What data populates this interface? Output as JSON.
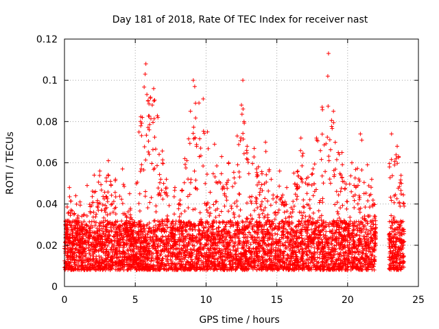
{
  "chart_data": {
    "type": "scatter",
    "title": "Day 181 of 2018, Rate Of TEC Index for receiver nast",
    "xlabel": "GPS time / hours",
    "ylabel": "ROTI / TECUs",
    "xlim": [
      0,
      25
    ],
    "ylim": [
      0,
      0.12
    ],
    "x_ticks": [
      0,
      5,
      10,
      15,
      20,
      25
    ],
    "x_tick_labels": [
      "0",
      "5",
      "10",
      "15",
      "20",
      "25"
    ],
    "y_ticks": [
      0,
      0.02,
      0.04,
      0.06,
      0.08,
      0.1,
      0.12
    ],
    "y_tick_labels": [
      "0",
      "0.02",
      "0.04",
      "0.06",
      "0.08",
      "0.1",
      "0.12"
    ],
    "grid": true,
    "marker": "plus",
    "color": "#ff0000",
    "data_gap_hours": [
      22.0,
      22.9
    ],
    "series": [
      {
        "points": [
          [
            0.3,
            0.036
          ],
          [
            0.35,
            0.048
          ],
          [
            0.8,
            0.044
          ],
          [
            1.1,
            0.041
          ],
          [
            1.6,
            0.049
          ],
          [
            2.1,
            0.054
          ],
          [
            2.5,
            0.056
          ],
          [
            3.1,
            0.061
          ],
          [
            3.6,
            0.052
          ],
          [
            4.1,
            0.057
          ],
          [
            4.6,
            0.045
          ],
          [
            5.5,
            0.082
          ],
          [
            5.7,
            0.103
          ],
          [
            5.75,
            0.108
          ],
          [
            5.9,
            0.09
          ],
          [
            6.2,
            0.088
          ],
          [
            6.3,
            0.096
          ],
          [
            6.6,
            0.082
          ],
          [
            7.2,
            0.052
          ],
          [
            7.8,
            0.048
          ],
          [
            8.5,
            0.062
          ],
          [
            8.9,
            0.085
          ],
          [
            9.1,
            0.1
          ],
          [
            9.2,
            0.097
          ],
          [
            9.5,
            0.089
          ],
          [
            9.8,
            0.091
          ],
          [
            10.1,
            0.075
          ],
          [
            10.6,
            0.069
          ],
          [
            11.1,
            0.063
          ],
          [
            11.6,
            0.06
          ],
          [
            12.2,
            0.073
          ],
          [
            12.5,
            0.088
          ],
          [
            12.6,
            0.1
          ],
          [
            12.9,
            0.068
          ],
          [
            13.4,
            0.067
          ],
          [
            13.7,
            0.058
          ],
          [
            14.2,
            0.07
          ],
          [
            14.6,
            0.052
          ],
          [
            15.2,
            0.056
          ],
          [
            15.7,
            0.048
          ],
          [
            16.2,
            0.055
          ],
          [
            16.7,
            0.072
          ],
          [
            17.2,
            0.053
          ],
          [
            17.8,
            0.072
          ],
          [
            18.2,
            0.087
          ],
          [
            18.6,
            0.102
          ],
          [
            18.65,
            0.113
          ],
          [
            19.0,
            0.085
          ],
          [
            19.6,
            0.065
          ],
          [
            20.3,
            0.06
          ],
          [
            20.9,
            0.074
          ],
          [
            21.0,
            0.071
          ],
          [
            21.4,
            0.059
          ],
          [
            21.7,
            0.052
          ],
          [
            23.1,
            0.074
          ],
          [
            23.5,
            0.068
          ],
          [
            23.6,
            0.063
          ],
          [
            23.8,
            0.05
          ]
        ]
      }
    ]
  }
}
